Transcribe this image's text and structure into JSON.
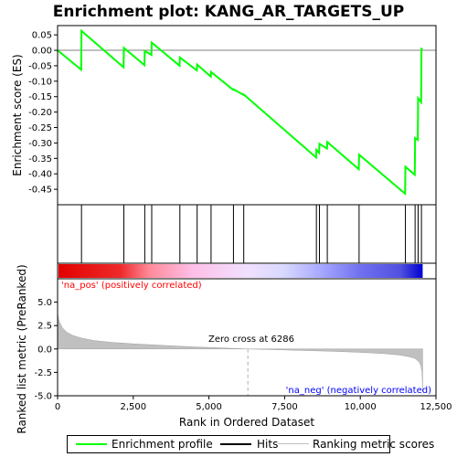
{
  "chart_data": {
    "type": "line",
    "title": "Enrichment plot: KANG_AR_TARGETS_UP",
    "panels": {
      "enrichment": {
        "ylabel": "Enrichment score (ES)",
        "ylim": [
          -0.5,
          0.08
        ],
        "yticks": [
          0.05,
          0.0,
          -0.05,
          -0.1,
          -0.15,
          -0.2,
          -0.25,
          -0.3,
          -0.35,
          -0.4,
          -0.45
        ],
        "ytick_labels": [
          "0.05",
          "0.00",
          "-0.05",
          "-0.10",
          "-0.15",
          "-0.20",
          "-0.25",
          "-0.30",
          "-0.35",
          "-0.40",
          "-0.45"
        ],
        "series": [
          {
            "name": "Enrichment profile",
            "color": "#00ff00",
            "points": [
              [
                0,
                0.0
              ],
              [
                780,
                -0.063
              ],
              [
                790,
                0.063
              ],
              [
                2180,
                -0.055
              ],
              [
                2190,
                0.008
              ],
              [
                2870,
                -0.048
              ],
              [
                2880,
                -0.002
              ],
              [
                3100,
                -0.015
              ],
              [
                3110,
                0.025
              ],
              [
                4030,
                -0.05
              ],
              [
                4040,
                -0.023
              ],
              [
                4600,
                -0.065
              ],
              [
                4610,
                -0.046
              ],
              [
                5060,
                -0.085
              ],
              [
                5070,
                -0.07
              ],
              [
                5800,
                -0.128
              ],
              [
                5810,
                -0.126
              ],
              [
                6140,
                -0.144
              ],
              [
                6150,
                -0.143
              ],
              [
                8540,
                -0.347
              ],
              [
                8550,
                -0.322
              ],
              [
                8640,
                -0.332
              ],
              [
                8650,
                -0.303
              ],
              [
                8900,
                -0.318
              ],
              [
                8910,
                -0.297
              ],
              [
                9950,
                -0.385
              ],
              [
                9960,
                -0.338
              ],
              [
                11480,
                -0.464
              ],
              [
                11490,
                -0.377
              ],
              [
                11800,
                -0.403
              ],
              [
                11810,
                -0.284
              ],
              [
                11900,
                -0.29
              ],
              [
                11910,
                -0.155
              ],
              [
                12010,
                -0.168
              ],
              [
                12020,
                0.005
              ],
              [
                12060,
                0.003
              ]
            ]
          }
        ]
      },
      "hits": {
        "name": "Hits",
        "positions": [
          790,
          2190,
          2880,
          3110,
          4040,
          4610,
          5070,
          5810,
          6150,
          8550,
          8650,
          8910,
          9960,
          11490,
          11810,
          11910,
          12020
        ]
      },
      "ranked_metric": {
        "ylabel": "Ranked list metric (PreRanked)",
        "name": "Ranking metric scores",
        "ylim": [
          -5.0,
          7.5
        ],
        "yticks": [
          5.0,
          2.5,
          0.0,
          -2.5,
          -5.0
        ],
        "ytick_labels": [
          "5.0",
          "2.5",
          "0.0",
          "-2.5",
          "-5.0"
        ],
        "curve": [
          [
            0,
            3.8
          ],
          [
            50,
            3.0
          ],
          [
            150,
            2.3
          ],
          [
            300,
            1.8
          ],
          [
            500,
            1.45
          ],
          [
            800,
            1.15
          ],
          [
            1200,
            0.9
          ],
          [
            1800,
            0.7
          ],
          [
            2500,
            0.55
          ],
          [
            3500,
            0.38
          ],
          [
            4500,
            0.22
          ],
          [
            5500,
            0.1
          ],
          [
            6286,
            0.0
          ],
          [
            7000,
            -0.06
          ],
          [
            8000,
            -0.15
          ],
          [
            9000,
            -0.24
          ],
          [
            10000,
            -0.36
          ],
          [
            10800,
            -0.5
          ],
          [
            11300,
            -0.65
          ],
          [
            11600,
            -0.82
          ],
          [
            11800,
            -1.0
          ],
          [
            11950,
            -1.4
          ],
          [
            12000,
            -1.8
          ],
          [
            12040,
            -2.5
          ],
          [
            12060,
            -4.6
          ]
        ],
        "zero_cross": 6286,
        "zero_cross_label": "Zero cross at 6286",
        "pos_label": "'na_pos' (positively correlated)",
        "neg_label": "'na_neg' (negatively correlated)",
        "pos_color": "#ff0000",
        "neg_color": "#0000ff"
      }
    },
    "x": {
      "label": "Rank in Ordered Dataset",
      "lim": [
        0,
        12500
      ],
      "n": 12060,
      "ticks": [
        0,
        2500,
        5000,
        7500,
        10000,
        12500
      ],
      "tick_labels": [
        "0",
        "2,500",
        "5,000",
        "7,500",
        "10,000",
        "12,500"
      ]
    },
    "legend": [
      {
        "label": "Enrichment profile",
        "color": "#00ff00"
      },
      {
        "label": "Hits",
        "color": "#000000"
      },
      {
        "label": "Ranking metric scores",
        "color": "#c0c0c0"
      }
    ]
  }
}
